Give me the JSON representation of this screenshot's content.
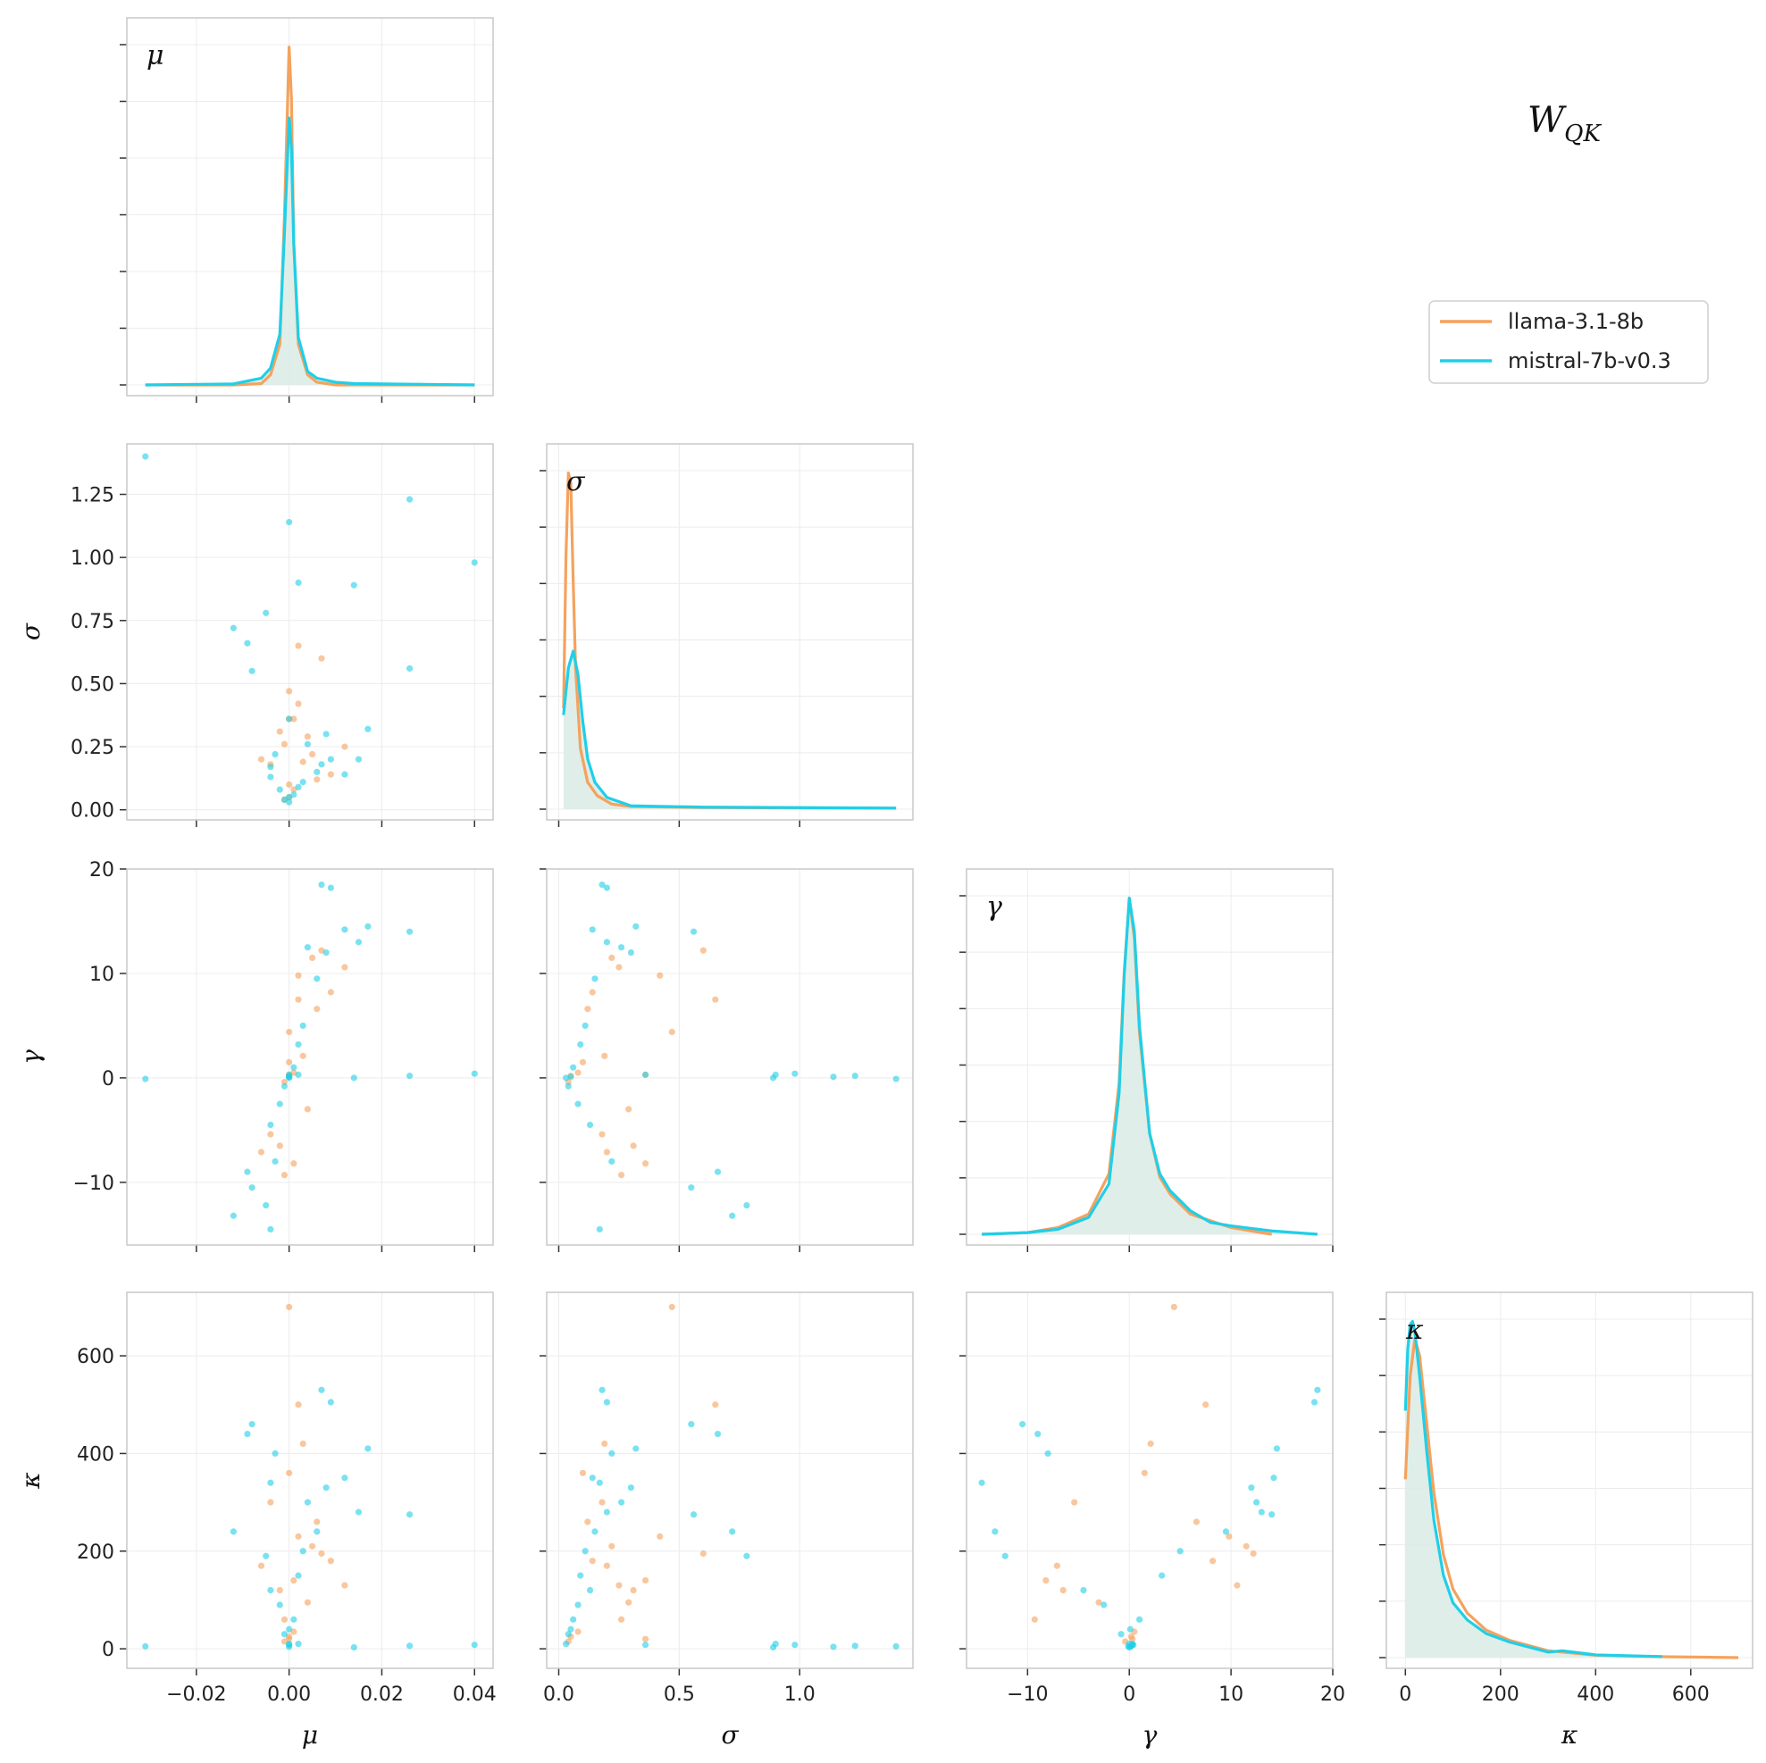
{
  "title": {
    "main": "W",
    "sub": "QK"
  },
  "legend": {
    "placement": "top-right",
    "entries": [
      {
        "name": "llama-3.1-8b",
        "color": "#f5a25d"
      },
      {
        "name": "mistral-7b-v0.3",
        "color": "#1fcfe8"
      }
    ]
  },
  "colors": {
    "fill": "#dbece6",
    "grid": "#ececec",
    "frame": "#c8c8c8"
  },
  "chart_data": {
    "type": "scatter",
    "layout": "corner-pairplot",
    "variables": [
      {
        "key": "mu",
        "label": "μ",
        "range": [
          -0.035,
          0.044
        ],
        "ticks": [
          -0.02,
          0.0,
          0.02,
          0.04
        ],
        "tick_labels": [
          "−0.02",
          "0.00",
          "0.02",
          "0.04"
        ]
      },
      {
        "key": "sigma",
        "label": "σ",
        "range": [
          -0.05,
          1.47
        ],
        "ticks": [
          0.0,
          0.5,
          1.0
        ],
        "tick_labels": [
          "0.0",
          "0.5",
          "1.0"
        ]
      },
      {
        "key": "gamma",
        "label": "γ",
        "range": [
          -16,
          20
        ],
        "ticks": [
          -10,
          0,
          10,
          20
        ],
        "tick_labels": [
          "−10",
          "0",
          "10",
          "20"
        ]
      },
      {
        "key": "kappa",
        "label": "κ",
        "range": [
          -40,
          730
        ],
        "ticks": [
          0,
          200,
          400,
          600
        ],
        "tick_labels": [
          "0",
          "200",
          "400",
          "600"
        ]
      }
    ],
    "y_ticks": {
      "sigma": {
        "ticks": [
          0.0,
          0.25,
          0.5,
          0.75,
          1.0,
          1.25
        ],
        "tick_labels": [
          "0.00",
          "0.25",
          "0.50",
          "0.75",
          "1.00",
          "1.25"
        ],
        "range": [
          -0.04,
          1.45
        ]
      },
      "gamma": {
        "ticks": [
          -10,
          0,
          10,
          20
        ],
        "tick_labels": [
          "−10",
          "0",
          "10",
          "20"
        ],
        "range": [
          -16,
          20
        ]
      },
      "kappa": {
        "ticks": [
          0,
          200,
          400,
          600
        ],
        "tick_labels": [
          "0",
          "200",
          "400",
          "600"
        ],
        "range": [
          -40,
          730
        ]
      }
    },
    "density": [
      {
        "variable": "mu",
        "series": [
          {
            "name": "llama-3.1-8b",
            "x": [
              -0.031,
              -0.012,
              -0.006,
              -0.004,
              -0.002,
              -0.001,
              0.0,
              0.0005,
              0.001,
              0.002,
              0.004,
              0.006,
              0.01,
              0.04
            ],
            "y": [
              0.0,
              0.0,
              0.004,
              0.03,
              0.12,
              0.5,
              1.0,
              0.85,
              0.42,
              0.12,
              0.03,
              0.008,
              0.0,
              0.0
            ]
          },
          {
            "name": "mistral-7b-v0.3",
            "x": [
              -0.031,
              -0.012,
              -0.006,
              -0.004,
              -0.002,
              -0.001,
              0.0,
              0.0005,
              0.001,
              0.002,
              0.004,
              0.006,
              0.01,
              0.014,
              0.04
            ],
            "y": [
              0.0,
              0.003,
              0.02,
              0.05,
              0.15,
              0.45,
              0.79,
              0.7,
              0.42,
              0.14,
              0.04,
              0.02,
              0.008,
              0.004,
              0.0
            ]
          }
        ]
      },
      {
        "variable": "sigma",
        "series": [
          {
            "name": "llama-3.1-8b",
            "x": [
              0.02,
              0.03,
              0.04,
              0.05,
              0.06,
              0.07,
              0.09,
              0.12,
              0.16,
              0.22,
              0.3,
              0.6,
              1.4
            ],
            "y": [
              0.3,
              0.75,
              1.0,
              0.97,
              0.68,
              0.42,
              0.18,
              0.08,
              0.04,
              0.015,
              0.008,
              0.005,
              0.003
            ]
          },
          {
            "name": "mistral-7b-v0.3",
            "x": [
              0.02,
              0.04,
              0.06,
              0.08,
              0.1,
              0.12,
              0.15,
              0.2,
              0.3,
              0.6,
              0.9,
              1.4
            ],
            "y": [
              0.28,
              0.42,
              0.47,
              0.4,
              0.26,
              0.15,
              0.08,
              0.035,
              0.01,
              0.006,
              0.005,
              0.003
            ]
          }
        ]
      },
      {
        "variable": "gamma",
        "series": [
          {
            "name": "llama-3.1-8b",
            "x": [
              -14.5,
              -10,
              -7,
              -4,
              -2,
              -1,
              -0.5,
              0,
              0.5,
              1,
              2,
              3,
              4,
              6,
              8,
              10,
              14
            ],
            "y": [
              0.0,
              0.005,
              0.02,
              0.06,
              0.18,
              0.45,
              0.78,
              1.0,
              0.88,
              0.6,
              0.3,
              0.17,
              0.12,
              0.06,
              0.04,
              0.02,
              0.0
            ]
          },
          {
            "name": "mistral-7b-v0.3",
            "x": [
              -14.5,
              -10,
              -7,
              -4,
              -2,
              -1,
              -0.5,
              0,
              0.5,
              1,
              2,
              3,
              4,
              6,
              8,
              10,
              14,
              18.5
            ],
            "y": [
              0.0,
              0.005,
              0.015,
              0.05,
              0.15,
              0.42,
              0.77,
              1.0,
              0.9,
              0.62,
              0.3,
              0.18,
              0.13,
              0.07,
              0.035,
              0.025,
              0.01,
              0.0
            ]
          }
        ]
      },
      {
        "variable": "kappa",
        "series": [
          {
            "name": "llama-3.1-8b",
            "x": [
              0,
              10,
              20,
              30,
              45,
              60,
              80,
              100,
              130,
              170,
              220,
              300,
              400,
              520,
              700
            ],
            "y": [
              0.52,
              0.82,
              0.93,
              0.88,
              0.68,
              0.48,
              0.3,
              0.2,
              0.13,
              0.08,
              0.05,
              0.02,
              0.007,
              0.003,
              0.0
            ]
          },
          {
            "name": "mistral-7b-v0.3",
            "x": [
              0,
              5,
              10,
              15,
              20,
              30,
              45,
              60,
              80,
              100,
              130,
              170,
              220,
              300,
              330,
              400,
              540
            ],
            "y": [
              0.72,
              0.9,
              0.97,
              0.98,
              0.95,
              0.82,
              0.6,
              0.4,
              0.24,
              0.16,
              0.11,
              0.07,
              0.045,
              0.016,
              0.02,
              0.008,
              0.003
            ]
          }
        ]
      }
    ],
    "scatter": {
      "note_series": [
        "llama-3.1-8b",
        "mistral-7b-v0.3"
      ],
      "llama-3.1-8b": [
        {
          "mu": -0.002,
          "sigma": 0.31,
          "gamma": -6.5,
          "kappa": 120
        },
        {
          "mu": 0.001,
          "sigma": 0.36,
          "gamma": -8.2,
          "kappa": 140
        },
        {
          "mu": 0.002,
          "sigma": 0.42,
          "gamma": 9.8,
          "kappa": 230
        },
        {
          "mu": 0.005,
          "sigma": 0.22,
          "gamma": 11.5,
          "kappa": 210
        },
        {
          "mu": 0.007,
          "sigma": 0.6,
          "gamma": 12.2,
          "kappa": 195
        },
        {
          "mu": 0.004,
          "sigma": 0.29,
          "gamma": -3.0,
          "kappa": 95
        },
        {
          "mu": -0.004,
          "sigma": 0.18,
          "gamma": -5.4,
          "kappa": 300
        },
        {
          "mu": 0.0,
          "sigma": 0.47,
          "gamma": 4.4,
          "kappa": 700
        },
        {
          "mu": 0.009,
          "sigma": 0.14,
          "gamma": 8.2,
          "kappa": 180
        },
        {
          "mu": -0.001,
          "sigma": 0.26,
          "gamma": -9.3,
          "kappa": 60
        },
        {
          "mu": 0.003,
          "sigma": 0.19,
          "gamma": 2.1,
          "kappa": 420
        },
        {
          "mu": 0.0,
          "sigma": 0.05,
          "gamma": 0.2,
          "kappa": 25
        },
        {
          "mu": 0.001,
          "sigma": 0.08,
          "gamma": 0.5,
          "kappa": 35
        },
        {
          "mu": -0.001,
          "sigma": 0.04,
          "gamma": -0.4,
          "kappa": 15
        },
        {
          "mu": 0.006,
          "sigma": 0.12,
          "gamma": 6.6,
          "kappa": 260
        },
        {
          "mu": -0.006,
          "sigma": 0.2,
          "gamma": -7.1,
          "kappa": 170
        },
        {
          "mu": 0.002,
          "sigma": 0.65,
          "gamma": 7.5,
          "kappa": 500
        },
        {
          "mu": 0.0,
          "sigma": 0.1,
          "gamma": 1.5,
          "kappa": 360
        },
        {
          "mu": 0.0,
          "sigma": 0.36,
          "gamma": 0.3,
          "kappa": 20
        },
        {
          "mu": 0.012,
          "sigma": 0.25,
          "gamma": 10.6,
          "kappa": 130
        }
      ],
      "mistral-7b-v0.3": [
        {
          "mu": -0.031,
          "sigma": 1.4,
          "gamma": -0.1,
          "kappa": 5
        },
        {
          "mu": 0.04,
          "sigma": 0.98,
          "gamma": 0.4,
          "kappa": 8
        },
        {
          "mu": 0.026,
          "sigma": 1.23,
          "gamma": 0.2,
          "kappa": 6
        },
        {
          "mu": 0.0,
          "sigma": 1.14,
          "gamma": 0.1,
          "kappa": 4
        },
        {
          "mu": 0.026,
          "sigma": 0.56,
          "gamma": 14.0,
          "kappa": 275
        },
        {
          "mu": 0.014,
          "sigma": 0.89,
          "gamma": 0.0,
          "kappa": 3
        },
        {
          "mu": 0.002,
          "sigma": 0.9,
          "gamma": 0.3,
          "kappa": 10
        },
        {
          "mu": -0.012,
          "sigma": 0.72,
          "gamma": -13.2,
          "kappa": 240
        },
        {
          "mu": -0.005,
          "sigma": 0.78,
          "gamma": -12.2,
          "kappa": 190
        },
        {
          "mu": 0.007,
          "sigma": 0.18,
          "gamma": 18.5,
          "kappa": 530
        },
        {
          "mu": 0.009,
          "sigma": 0.2,
          "gamma": 18.2,
          "kappa": 505
        },
        {
          "mu": -0.004,
          "sigma": 0.17,
          "gamma": -14.5,
          "kappa": 340
        },
        {
          "mu": 0.012,
          "sigma": 0.14,
          "gamma": 14.2,
          "kappa": 350
        },
        {
          "mu": 0.017,
          "sigma": 0.32,
          "gamma": 14.5,
          "kappa": 410
        },
        {
          "mu": -0.008,
          "sigma": 0.55,
          "gamma": -10.5,
          "kappa": 460
        },
        {
          "mu": -0.003,
          "sigma": 0.22,
          "gamma": -8.0,
          "kappa": 400
        },
        {
          "mu": 0.004,
          "sigma": 0.26,
          "gamma": 12.5,
          "kappa": 300
        },
        {
          "mu": 0.006,
          "sigma": 0.15,
          "gamma": 9.5,
          "kappa": 240
        },
        {
          "mu": 0.002,
          "sigma": 0.09,
          "gamma": 3.2,
          "kappa": 150
        },
        {
          "mu": -0.002,
          "sigma": 0.08,
          "gamma": -2.5,
          "kappa": 90
        },
        {
          "mu": 0.0,
          "sigma": 0.05,
          "gamma": 0.1,
          "kappa": 40
        },
        {
          "mu": 0.001,
          "sigma": 0.06,
          "gamma": 1.0,
          "kappa": 60
        },
        {
          "mu": -0.001,
          "sigma": 0.04,
          "gamma": -0.8,
          "kappa": 30
        },
        {
          "mu": 0.003,
          "sigma": 0.11,
          "gamma": 5.0,
          "kappa": 200
        },
        {
          "mu": -0.004,
          "sigma": 0.13,
          "gamma": -4.5,
          "kappa": 120
        },
        {
          "mu": 0.0,
          "sigma": 0.03,
          "gamma": 0.0,
          "kappa": 10
        },
        {
          "mu": 0.008,
          "sigma": 0.3,
          "gamma": 12.0,
          "kappa": 330
        },
        {
          "mu": -0.009,
          "sigma": 0.66,
          "gamma": -9.0,
          "kappa": 440
        },
        {
          "mu": 0.0,
          "sigma": 0.36,
          "gamma": 0.3,
          "kappa": 8
        },
        {
          "mu": 0.015,
          "sigma": 0.2,
          "gamma": 13.0,
          "kappa": 280
        }
      ]
    }
  }
}
